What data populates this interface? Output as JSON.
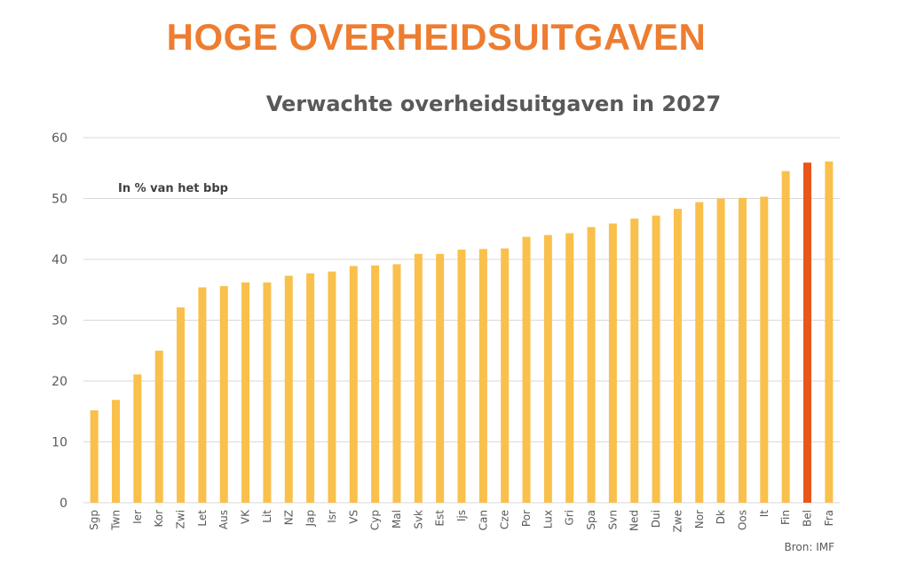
{
  "headline": "HOGE OVERHEIDSUITGAVEN",
  "colors": {
    "headline": "#ED7D31",
    "bar": "#F9C04B",
    "highlight": "#E8561A",
    "grid": "#D9D9D9",
    "text": "#595959"
  },
  "chart_data": {
    "type": "bar",
    "title": "Verwachte overheidsuitgaven in 2027",
    "annotation": "In % van het bbp",
    "source": "Bron: IMF",
    "ylim": [
      0,
      60
    ],
    "yticks": [
      0,
      10,
      20,
      30,
      40,
      50,
      60
    ],
    "grid": true,
    "highlight_category": "Bel",
    "categories": [
      "Sgp",
      "Twn",
      "Ier",
      "Kor",
      "Zwi",
      "Let",
      "Aus",
      "VK",
      "Lit",
      "NZ",
      "Jap",
      "Isr",
      "VS",
      "Cyp",
      "Mal",
      "Svk",
      "Est",
      "Ijs",
      "Can",
      "Cze",
      "Por",
      "Lux",
      "Gri",
      "Spa",
      "Svn",
      "Ned",
      "Dui",
      "Zwe",
      "Nor",
      "Dk",
      "Oos",
      "It",
      "Fin",
      "Bel",
      "Fra"
    ],
    "values": [
      15.2,
      16.9,
      21.1,
      25.0,
      32.1,
      35.4,
      35.6,
      36.2,
      36.2,
      37.3,
      37.7,
      38.0,
      38.9,
      39.0,
      39.2,
      40.9,
      40.9,
      41.6,
      41.7,
      41.8,
      43.7,
      44.0,
      44.3,
      45.3,
      45.9,
      46.7,
      47.2,
      48.3,
      49.4,
      50.0,
      50.1,
      50.3,
      54.5,
      55.9,
      56.1
    ]
  }
}
